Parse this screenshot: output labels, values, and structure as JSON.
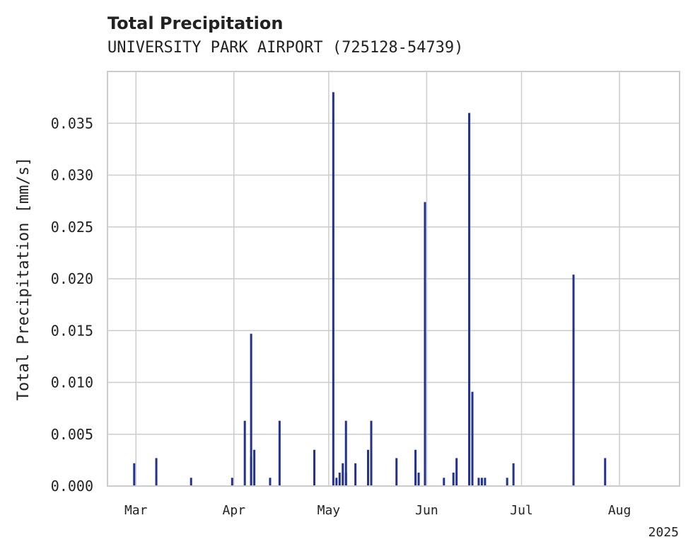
{
  "chart_data": {
    "type": "bar",
    "title": "Total Precipitation",
    "subtitle": "UNIVERSITY PARK AIRPORT (725128-54739)",
    "xlabel": "",
    "ylabel": "Total Precipitation [mm/s]",
    "ylim": [
      0,
      0.04
    ],
    "xlim": [
      "2025-02-20",
      "2025-08-20"
    ],
    "yticks": [
      "0.000",
      "0.005",
      "0.010",
      "0.015",
      "0.020",
      "0.025",
      "0.030",
      "0.035"
    ],
    "xticks": [
      {
        "date": "2025-03-01",
        "label": "Mar"
      },
      {
        "date": "2025-04-01",
        "label": "Apr"
      },
      {
        "date": "2025-05-01",
        "label": "May"
      },
      {
        "date": "2025-06-01",
        "label": "Jun"
      },
      {
        "date": "2025-07-01",
        "label": "Jul"
      },
      {
        "date": "2025-08-01",
        "label": "Aug"
      }
    ],
    "year_label": "2025",
    "grid": true,
    "bar_color": "#23318f",
    "points": [
      {
        "x": "2025-02-28",
        "y": 0.0022
      },
      {
        "x": "2025-03-07",
        "y": 0.0027
      },
      {
        "x": "2025-03-18",
        "y": 0.0008
      },
      {
        "x": "2025-03-31",
        "y": 0.0008
      },
      {
        "x": "2025-04-04",
        "y": 0.0063
      },
      {
        "x": "2025-04-06",
        "y": 0.0028
      },
      {
        "x": "2025-04-06",
        "y": 0.0147
      },
      {
        "x": "2025-04-07",
        "y": 0.0035
      },
      {
        "x": "2025-04-12",
        "y": 0.0008
      },
      {
        "x": "2025-04-15",
        "y": 0.0063
      },
      {
        "x": "2025-04-26",
        "y": 0.0035
      },
      {
        "x": "2025-05-02",
        "y": 0.038
      },
      {
        "x": "2025-05-03",
        "y": 0.0008
      },
      {
        "x": "2025-05-04",
        "y": 0.0013
      },
      {
        "x": "2025-05-05",
        "y": 0.0022
      },
      {
        "x": "2025-05-06",
        "y": 0.0013
      },
      {
        "x": "2025-05-06",
        "y": 0.0063
      },
      {
        "x": "2025-05-09",
        "y": 0.0022
      },
      {
        "x": "2025-05-13",
        "y": 0.0035
      },
      {
        "x": "2025-05-14",
        "y": 0.0063
      },
      {
        "x": "2025-05-22",
        "y": 0.0027
      },
      {
        "x": "2025-05-28",
        "y": 0.0035
      },
      {
        "x": "2025-05-29",
        "y": 0.0013
      },
      {
        "x": "2025-05-31",
        "y": 0.0274
      },
      {
        "x": "2025-06-06",
        "y": 0.0008
      },
      {
        "x": "2025-06-09",
        "y": 0.0013
      },
      {
        "x": "2025-06-10",
        "y": 0.0027
      },
      {
        "x": "2025-06-14",
        "y": 0.036
      },
      {
        "x": "2025-06-15",
        "y": 0.0091
      },
      {
        "x": "2025-06-17",
        "y": 0.0008
      },
      {
        "x": "2025-06-18",
        "y": 0.0008
      },
      {
        "x": "2025-06-19",
        "y": 0.0008
      },
      {
        "x": "2025-06-26",
        "y": 0.0008
      },
      {
        "x": "2025-06-28",
        "y": 0.0022
      },
      {
        "x": "2025-07-17",
        "y": 0.0204
      },
      {
        "x": "2025-07-27",
        "y": 0.0027
      }
    ]
  }
}
